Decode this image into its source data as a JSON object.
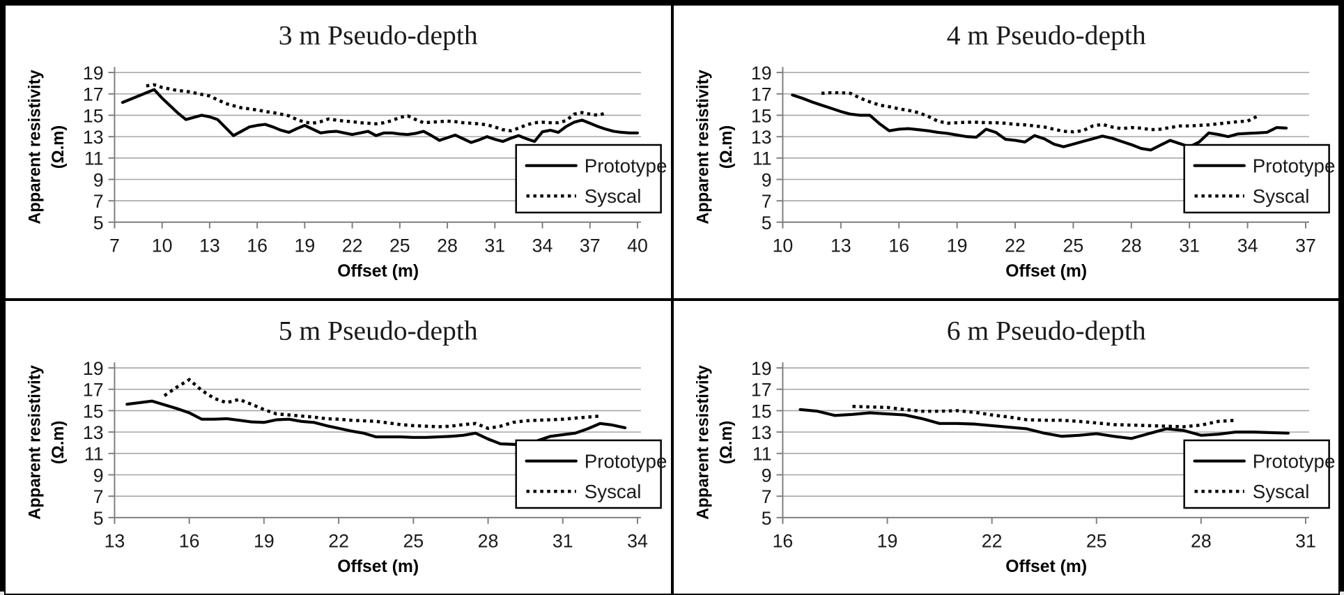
{
  "figure": {
    "background": "#ffffff",
    "border_color": "#000000",
    "line_color": "#000000",
    "grid_color": "#a6a6a6",
    "axis_color": "#7f7f7f"
  },
  "chart_data": [
    {
      "type": "line",
      "title": "3 m Pseudo-depth",
      "ylabel": "Apparent resistivity (Ω.m)",
      "ylabel_lines": [
        "Apparent resistivity",
        "(Ω.m)"
      ],
      "xlabel": "Offset (m)",
      "ylim": [
        5,
        19
      ],
      "yticks": [
        19,
        17,
        15,
        13,
        11,
        9,
        7,
        5
      ],
      "xticks": [
        7,
        10,
        13,
        16,
        19,
        22,
        25,
        28,
        31,
        34,
        37,
        40
      ],
      "grid": "horizontal",
      "legend": [
        "Prototype",
        "Syscal"
      ],
      "legend_position": "lower right",
      "series": [
        {
          "name": "Prototype",
          "line": "solid",
          "x_start": 7.5,
          "x_step": 0.5,
          "y": [
            16.2,
            16.5,
            16.8,
            17.1,
            17.4,
            16.6,
            15.9,
            15.2,
            14.6,
            14.8,
            15.0,
            14.85,
            14.6,
            13.85,
            13.1,
            13.5,
            13.9,
            14.05,
            14.15,
            13.9,
            13.6,
            13.4,
            13.75,
            14.05,
            13.7,
            13.35,
            13.45,
            13.5,
            13.35,
            13.2,
            13.35,
            13.5,
            13.1,
            13.35,
            13.35,
            13.25,
            13.2,
            13.3,
            13.5,
            13.1,
            12.65,
            12.9,
            13.15,
            12.8,
            12.45,
            12.7,
            13.0,
            12.75,
            12.55,
            12.85,
            13.1,
            12.8,
            12.55,
            13.45,
            13.6,
            13.4,
            13.95,
            14.35,
            14.55,
            14.25,
            13.95,
            13.7,
            13.5,
            13.4,
            13.35,
            13.35
          ]
        },
        {
          "name": "Syscal",
          "line": "dotted",
          "x_start": 9.0,
          "x_step": 0.5,
          "y": [
            17.75,
            17.85,
            17.6,
            17.45,
            17.3,
            17.25,
            17.1,
            16.95,
            16.8,
            16.45,
            16.1,
            15.9,
            15.7,
            15.6,
            15.5,
            15.35,
            15.25,
            15.1,
            14.95,
            14.6,
            14.35,
            14.25,
            14.4,
            14.65,
            14.55,
            14.45,
            14.4,
            14.3,
            14.25,
            14.2,
            14.3,
            14.5,
            14.8,
            14.95,
            14.6,
            14.3,
            14.35,
            14.4,
            14.45,
            14.4,
            14.3,
            14.25,
            14.2,
            14.1,
            13.9,
            13.65,
            13.55,
            13.8,
            14.1,
            14.3,
            14.35,
            14.3,
            14.3,
            14.5,
            15.1,
            15.25,
            15.1,
            15.0,
            15.2
          ]
        }
      ]
    },
    {
      "type": "line",
      "title": "4 m Pseudo-depth",
      "ylabel": "Apparent resistivity (Ω.m)",
      "ylabel_lines": [
        "Apparent resistivity",
        "(Ω.m)"
      ],
      "xlabel": "Offset (m)",
      "ylim": [
        5,
        19
      ],
      "yticks": [
        19,
        17,
        15,
        13,
        11,
        9,
        7,
        5
      ],
      "xticks": [
        10,
        13,
        16,
        19,
        22,
        25,
        28,
        31,
        34,
        37
      ],
      "grid": "horizontal",
      "legend": [
        "Prototype",
        "Syscal"
      ],
      "legend_position": "lower right",
      "series": [
        {
          "name": "Prototype",
          "line": "solid",
          "x_start": 10.5,
          "x_step": 0.5,
          "y": [
            16.9,
            16.6,
            16.25,
            15.95,
            15.65,
            15.35,
            15.1,
            15.0,
            15.0,
            14.2,
            13.55,
            13.7,
            13.75,
            13.65,
            13.55,
            13.4,
            13.3,
            13.15,
            13.0,
            12.95,
            13.7,
            13.4,
            12.75,
            12.65,
            12.5,
            13.1,
            12.8,
            12.3,
            12.05,
            12.3,
            12.55,
            12.8,
            13.05,
            12.85,
            12.55,
            12.25,
            11.9,
            11.75,
            12.2,
            12.65,
            12.35,
            12.05,
            12.5,
            13.35,
            13.2,
            13.0,
            13.25,
            13.3,
            13.35,
            13.4,
            13.85,
            13.8
          ]
        },
        {
          "name": "Syscal",
          "line": "dotted",
          "x_start": 12.0,
          "x_step": 0.5,
          "y": [
            17.05,
            17.1,
            17.1,
            17.05,
            16.6,
            16.25,
            15.95,
            15.8,
            15.6,
            15.45,
            15.25,
            14.9,
            14.45,
            14.25,
            14.3,
            14.35,
            14.35,
            14.3,
            14.3,
            14.25,
            14.15,
            14.1,
            14.0,
            13.9,
            13.7,
            13.5,
            13.45,
            13.55,
            14.0,
            14.15,
            13.9,
            13.75,
            13.85,
            13.8,
            13.65,
            13.7,
            13.85,
            14.0,
            14.0,
            14.05,
            14.1,
            14.2,
            14.3,
            14.4,
            14.45,
            14.9
          ]
        }
      ]
    },
    {
      "type": "line",
      "title": "5 m Pseudo-depth",
      "ylabel": "Apparent resistivity (Ω.m)",
      "ylabel_lines": [
        "Apparent resistivity",
        "(Ω.m)"
      ],
      "xlabel": "Offset (m)",
      "ylim": [
        5,
        19
      ],
      "yticks": [
        19,
        17,
        15,
        13,
        11,
        9,
        7,
        5
      ],
      "xticks": [
        13,
        16,
        19,
        22,
        25,
        28,
        31,
        34
      ],
      "grid": "horizontal",
      "legend": [
        "Prototype",
        "Syscal"
      ],
      "legend_position": "lower right",
      "series": [
        {
          "name": "Prototype",
          "line": "solid",
          "x_start": 13.5,
          "x_step": 0.5,
          "y": [
            15.6,
            15.75,
            15.9,
            15.55,
            15.2,
            14.8,
            14.2,
            14.2,
            14.25,
            14.1,
            13.95,
            13.9,
            14.15,
            14.2,
            14.0,
            13.9,
            13.6,
            13.35,
            13.1,
            12.9,
            12.55,
            12.55,
            12.55,
            12.5,
            12.5,
            12.55,
            12.6,
            12.7,
            12.9,
            12.35,
            11.9,
            11.85,
            11.8,
            12.2,
            12.6,
            12.75,
            12.9,
            13.3,
            13.8,
            13.65,
            13.4
          ]
        },
        {
          "name": "Syscal",
          "line": "dotted",
          "x_start": 15.0,
          "x_step": 0.5,
          "y": [
            16.4,
            17.2,
            17.9,
            16.9,
            16.15,
            15.75,
            16.05,
            15.6,
            15.1,
            14.7,
            14.6,
            14.5,
            14.4,
            14.25,
            14.2,
            14.1,
            14.05,
            14.0,
            13.85,
            13.7,
            13.6,
            13.55,
            13.5,
            13.55,
            13.7,
            13.8,
            13.35,
            13.55,
            13.9,
            14.05,
            14.1,
            14.15,
            14.2,
            14.3,
            14.4,
            14.5
          ]
        }
      ]
    },
    {
      "type": "line",
      "title": "6 m Pseudo-depth",
      "ylabel": "Apparent resistivity (Ω.m)",
      "ylabel_lines": [
        "Apparent resistivity",
        "(Ω.m)"
      ],
      "xlabel": "Offset (m)",
      "ylim": [
        5,
        19
      ],
      "yticks": [
        19,
        17,
        15,
        13,
        11,
        9,
        7,
        5
      ],
      "xticks": [
        16,
        19,
        22,
        25,
        28,
        31
      ],
      "grid": "horizontal",
      "legend": [
        "Prototype",
        "Syscal"
      ],
      "legend_position": "lower right",
      "series": [
        {
          "name": "Prototype",
          "line": "solid",
          "x_start": 16.5,
          "x_step": 0.5,
          "y": [
            15.1,
            14.95,
            14.55,
            14.65,
            14.8,
            14.7,
            14.6,
            14.25,
            13.8,
            13.8,
            13.75,
            13.6,
            13.45,
            13.3,
            12.9,
            12.6,
            12.7,
            12.85,
            12.6,
            12.4,
            12.85,
            13.3,
            13.15,
            12.7,
            12.8,
            13.0,
            13.0,
            12.95,
            12.9
          ]
        },
        {
          "name": "Syscal",
          "line": "dotted",
          "x_start": 18.0,
          "x_step": 0.5,
          "y": [
            15.4,
            15.35,
            15.3,
            15.1,
            14.95,
            14.95,
            15.0,
            14.85,
            14.6,
            14.4,
            14.15,
            14.1,
            14.1,
            14.0,
            13.85,
            13.7,
            13.65,
            13.6,
            13.55,
            13.5,
            13.65,
            14.0,
            14.1
          ]
        }
      ]
    }
  ]
}
